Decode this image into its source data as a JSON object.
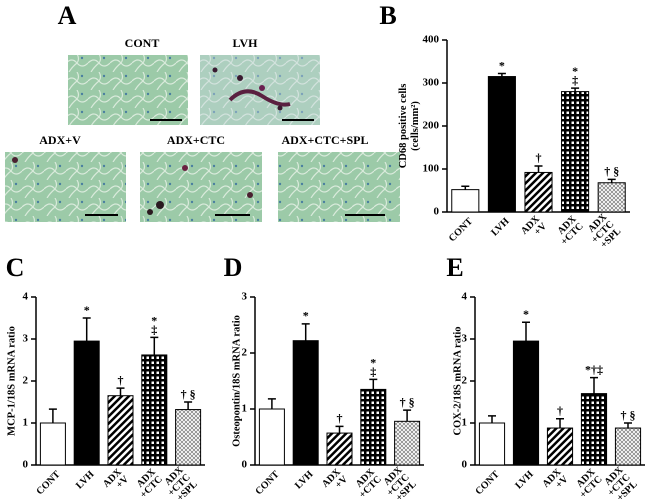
{
  "panel_a": {
    "label": "A",
    "images": [
      "CONT",
      "LVH",
      "ADX+V",
      "ADX+CTC",
      "ADX+CTC+SPL"
    ]
  },
  "chart_data": [
    {
      "type": "bar",
      "label": "B",
      "ylabel": "CD68 positive cells\n(cells/mm²)",
      "categories": [
        "CONT",
        "LVH",
        "ADX\n+V",
        "ADX\n+CTC",
        "ADX\n+CTC\n+SPL"
      ],
      "values": [
        52,
        315,
        92,
        280,
        68
      ],
      "errors": [
        8,
        7,
        15,
        8,
        8
      ],
      "annotations": [
        null,
        "*",
        "†",
        "*\n‡",
        "† §"
      ],
      "fills": [
        "white",
        "black",
        "hatch",
        "grid",
        "dots"
      ],
      "ylim": [
        0,
        400
      ],
      "yticks": [
        0,
        100,
        200,
        300,
        400
      ]
    },
    {
      "type": "bar",
      "label": "C",
      "ylabel": "MCP-1/18S mRNA ratio",
      "categories": [
        "CONT",
        "LVH",
        "ADX\n+V",
        "ADX\n+CTC",
        "ADX\n+CTC\n+SPL"
      ],
      "values": [
        1.0,
        2.95,
        1.65,
        2.62,
        1.32
      ],
      "errors": [
        0.33,
        0.55,
        0.18,
        0.42,
        0.18
      ],
      "annotations": [
        null,
        "*",
        "†",
        "*\n‡",
        "† §"
      ],
      "fills": [
        "white",
        "black",
        "hatch",
        "grid",
        "dots"
      ],
      "ylim": [
        0,
        4
      ],
      "yticks": [
        0,
        1,
        2,
        3,
        4
      ]
    },
    {
      "type": "bar",
      "label": "D",
      "ylabel": "Osteopontin/18S mRNA ratio",
      "categories": [
        "CONT",
        "LVH",
        "ADX\n+V",
        "ADX\n+CTC",
        "ADX\n+CTC\n+SPL"
      ],
      "values": [
        1.0,
        2.22,
        0.57,
        1.35,
        0.78
      ],
      "errors": [
        0.18,
        0.3,
        0.12,
        0.18,
        0.2
      ],
      "annotations": [
        null,
        "*",
        "†",
        "*\n‡",
        "† §"
      ],
      "fills": [
        "white",
        "black",
        "hatch",
        "grid",
        "dots"
      ],
      "ylim": [
        0,
        3
      ],
      "yticks": [
        0,
        1,
        2,
        3
      ]
    },
    {
      "type": "bar",
      "label": "E",
      "ylabel": "COX-2/18S mRNA ratio",
      "categories": [
        "CONT",
        "LVH",
        "ADX\n+V",
        "ADX\n+CTC",
        "ADX\n+CTC\n+SPL"
      ],
      "values": [
        1.0,
        2.95,
        0.88,
        1.7,
        0.88
      ],
      "errors": [
        0.17,
        0.45,
        0.22,
        0.38,
        0.12
      ],
      "annotations": [
        null,
        "*",
        "†",
        "*†‡",
        "† §"
      ],
      "fills": [
        "white",
        "black",
        "hatch",
        "grid",
        "dots"
      ],
      "ylim": [
        0,
        4
      ],
      "yticks": [
        0,
        1,
        2,
        3,
        4
      ]
    }
  ]
}
